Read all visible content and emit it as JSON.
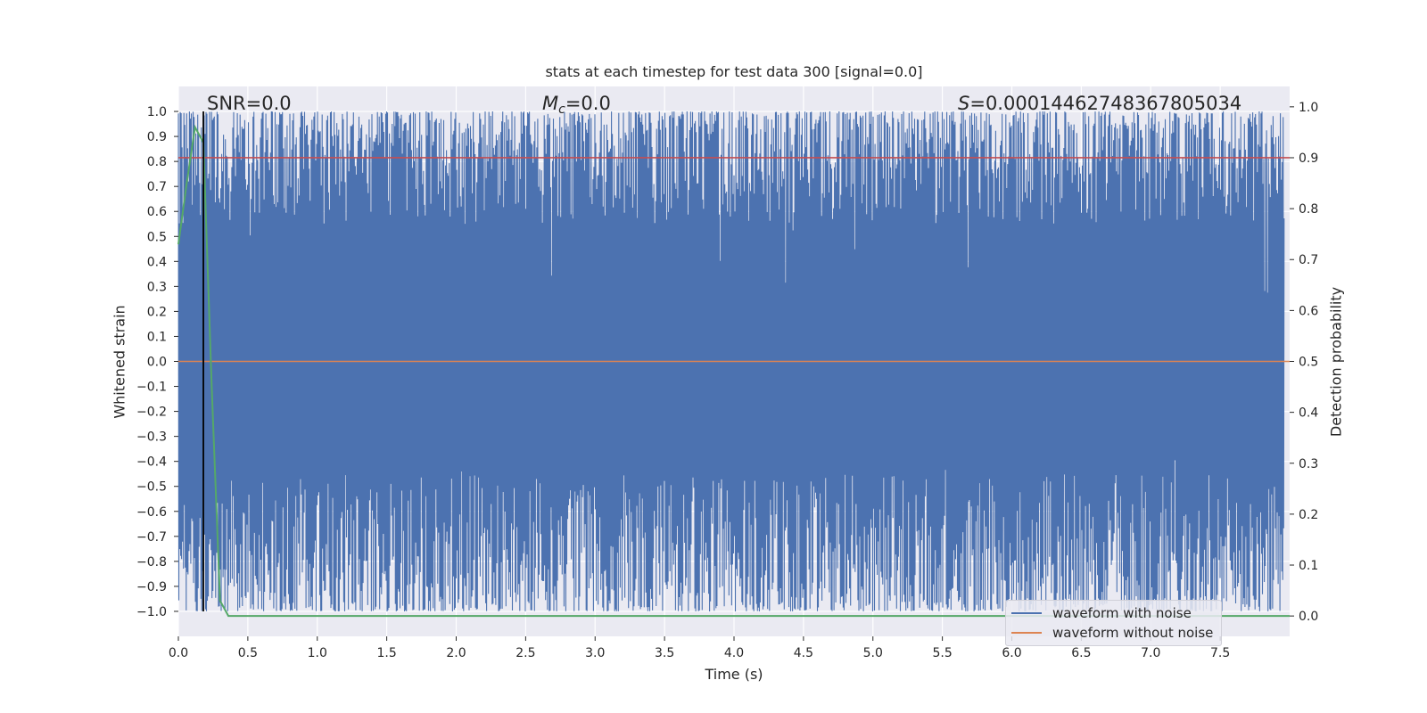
{
  "chart_data": {
    "type": "line",
    "title": "stats at each timestep for test data 300 [signal=0.0]",
    "xlabel": "Time (s)",
    "ylabel": "Whitened strain",
    "y2label": "Detection probability",
    "xlim": [
      0.0,
      8.0
    ],
    "ylim": [
      -1.1,
      1.1
    ],
    "y2lim": [
      -0.04,
      1.04
    ],
    "grid": true,
    "x_ticks": [
      "0.0",
      "0.5",
      "1.0",
      "1.5",
      "2.0",
      "2.5",
      "3.0",
      "3.5",
      "4.0",
      "4.5",
      "5.0",
      "5.5",
      "6.0",
      "6.5",
      "7.0",
      "7.5"
    ],
    "y_ticks": [
      "1.0",
      "0.9",
      "0.8",
      "0.7",
      "0.6",
      "0.5",
      "0.4",
      "0.3",
      "0.2",
      "0.1",
      "0.0",
      "−0.1",
      "−0.2",
      "−0.3",
      "−0.4",
      "−0.5",
      "−0.6",
      "−0.7",
      "−0.8",
      "−0.9",
      "−1.0"
    ],
    "y2_ticks": [
      "1.0",
      "0.9",
      "0.8",
      "0.7",
      "0.6",
      "0.5",
      "0.4",
      "0.3",
      "0.2",
      "0.1",
      "0.0"
    ],
    "annotations": {
      "snr": "SNR=0.0",
      "mc_symbol": "M",
      "mc_sub": "c",
      "mc_value": "=0.0",
      "s_symbol": "S",
      "s_value": "=0.00014462748367805034"
    },
    "marker_time": 0.18,
    "series": [
      {
        "name": "waveform with noise",
        "color": "#4c72b0",
        "axis": "left",
        "description_range": [
          -1.0,
          1.0
        ]
      },
      {
        "name": "waveform without noise",
        "color": "#dd8452",
        "axis": "left",
        "x": [
          0.0,
          8.0
        ],
        "y": [
          0.0,
          0.0
        ]
      },
      {
        "color": "#55a868",
        "axis": "right",
        "x": [
          0.0,
          0.06,
          0.12,
          0.18,
          0.24,
          0.3,
          0.36,
          8.0
        ],
        "y": [
          0.73,
          0.85,
          0.96,
          0.93,
          0.45,
          0.03,
          0.0,
          0.0
        ]
      }
    ],
    "threshold": {
      "color": "#c44e52",
      "axis": "right",
      "value": 0.9
    },
    "legend_position": "lower-right"
  }
}
